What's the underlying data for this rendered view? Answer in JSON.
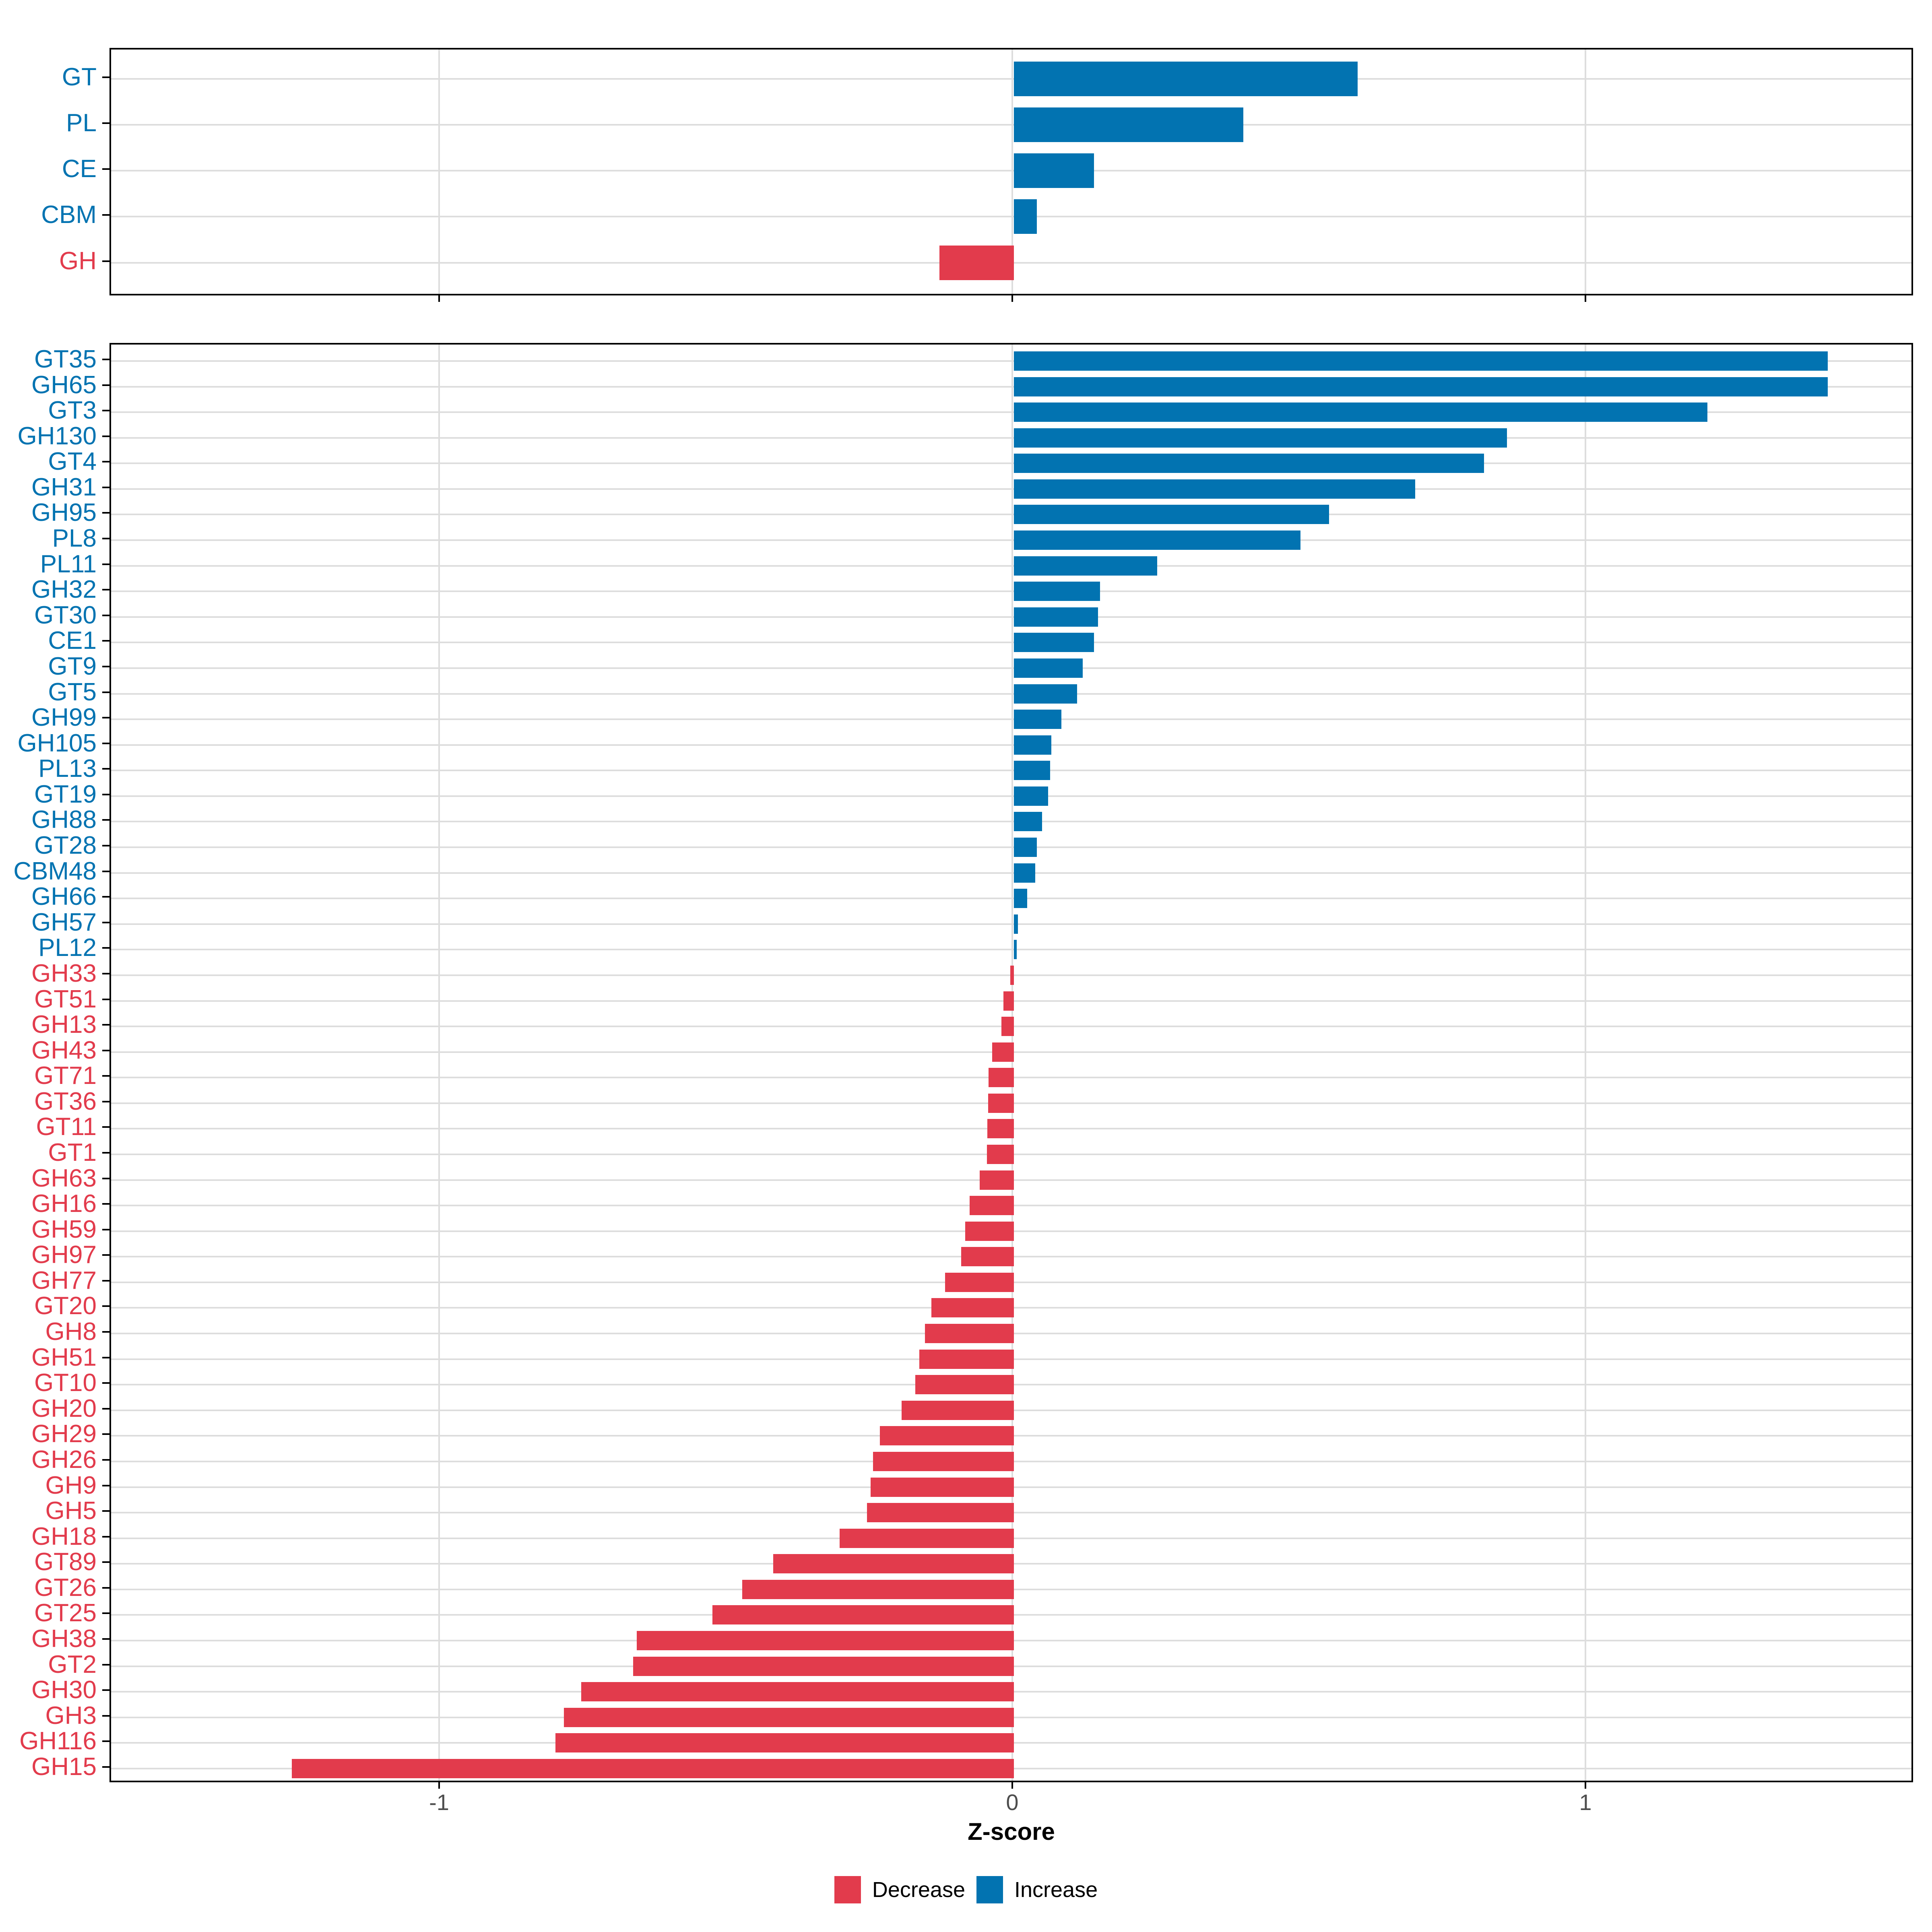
{
  "xlabel": "Z-score",
  "x_tick_labels": [
    "-1",
    "0",
    "1"
  ],
  "x_tick_values": [
    -1,
    0,
    1
  ],
  "legend": [
    {
      "label": "Decrease",
      "color": "#E23B4C"
    },
    {
      "label": "Increase",
      "color": "#0273B1"
    }
  ],
  "colors": {
    "increase": "#0273B1",
    "decrease": "#E23B4C",
    "gridline": "#DDDDDD",
    "axis_text": "#4D4D4D",
    "frame": "#000000",
    "background": "#FFFFFF"
  },
  "chart_data": [
    {
      "name": "enzyme-classes",
      "type": "bar",
      "orientation": "horizontal",
      "xlabel": "Z-score",
      "xlim": [
        -1.57,
        1.57
      ],
      "grid": "major-x-and-row-lines",
      "legend_position": "bottom",
      "categories": [
        "GT",
        "PL",
        "CE",
        "CBM",
        "GH"
      ],
      "values": [
        0.6,
        0.4,
        0.14,
        0.04,
        -0.13
      ]
    },
    {
      "name": "enzyme-families",
      "type": "bar",
      "orientation": "horizontal",
      "xlabel": "Z-score",
      "xlim": [
        -1.57,
        1.57
      ],
      "grid": "major-x-and-row-lines",
      "legend_position": "bottom",
      "categories": [
        "GT35",
        "GH65",
        "GT3",
        "GH130",
        "GT4",
        "GH31",
        "GH95",
        "PL8",
        "PL11",
        "GH32",
        "GT30",
        "CE1",
        "GT9",
        "GT5",
        "GH99",
        "GH105",
        "PL13",
        "GT19",
        "GH88",
        "GT28",
        "CBM48",
        "GH66",
        "GH57",
        "PL12",
        "GH33",
        "GT51",
        "GH13",
        "GH43",
        "GT71",
        "GT36",
        "GT11",
        "GT1",
        "GH63",
        "GH16",
        "GH59",
        "GH97",
        "GH77",
        "GT20",
        "GH8",
        "GH51",
        "GT10",
        "GH20",
        "GH29",
        "GH26",
        "GH9",
        "GH5",
        "GH18",
        "GT89",
        "GT26",
        "GT25",
        "GH38",
        "GT2",
        "GH30",
        "GH3",
        "GH116",
        "GH15"
      ],
      "values": [
        1.42,
        1.42,
        1.21,
        0.86,
        0.82,
        0.7,
        0.55,
        0.5,
        0.25,
        0.15,
        0.147,
        0.14,
        0.12,
        0.11,
        0.083,
        0.065,
        0.063,
        0.06,
        0.049,
        0.04,
        0.037,
        0.023,
        0.007,
        0.005,
        -0.006,
        -0.018,
        -0.022,
        -0.038,
        -0.044,
        -0.045,
        -0.046,
        -0.047,
        -0.06,
        -0.077,
        -0.085,
        -0.092,
        -0.12,
        -0.144,
        -0.155,
        -0.165,
        -0.172,
        -0.196,
        -0.234,
        -0.246,
        -0.25,
        -0.256,
        -0.304,
        -0.42,
        -0.474,
        -0.526,
        -0.658,
        -0.664,
        -0.755,
        -0.785,
        -0.8,
        -1.26
      ]
    }
  ]
}
